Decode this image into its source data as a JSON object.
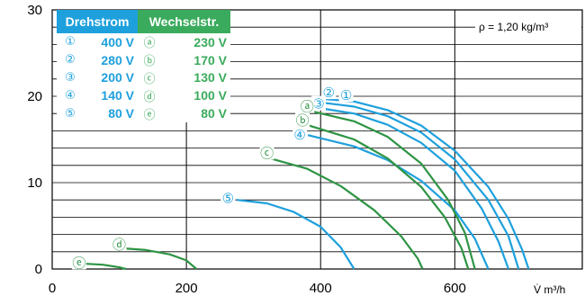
{
  "chart_data": {
    "type": "line",
    "x_ticks": [
      "0",
      "200",
      "400",
      "600"
    ],
    "y_ticks": [
      "0",
      "10",
      "20",
      "30"
    ],
    "x_unit_label": "V̇ m³/h",
    "annotation": "ρ = 1,20 kg/m³",
    "xlim": [
      0,
      790
    ],
    "ylim": [
      0,
      30
    ],
    "grid": true,
    "legend": {
      "header_left": "Drehstrom",
      "header_right": "Wechselstr.",
      "header_left_color": "#1ea0dc",
      "header_right_color": "#3aab5c",
      "rows": [
        {
          "sym_left": "①",
          "val_left": "400 V",
          "sym_right": "ⓐ",
          "val_right": "230 V"
        },
        {
          "sym_left": "②",
          "val_left": "280 V",
          "sym_right": "ⓑ",
          "val_right": "170 V"
        },
        {
          "sym_left": "③",
          "val_left": "200 V",
          "sym_right": "ⓒ",
          "val_right": "130 V"
        },
        {
          "sym_left": "④",
          "val_left": "140 V",
          "sym_right": "ⓓ",
          "val_right": "100 V"
        },
        {
          "sym_left": "⑤",
          "val_left": "80 V",
          "sym_right": "ⓔ",
          "val_right": "80 V"
        }
      ]
    },
    "series": [
      {
        "marker": "①",
        "color": "#1ea0dc",
        "label_at": [
          438,
          20.1
        ],
        "points": [
          [
            403,
            19.7
          ],
          [
            450,
            19.4
          ],
          [
            500,
            18.4
          ],
          [
            550,
            16.6
          ],
          [
            600,
            13.7
          ],
          [
            650,
            9.5
          ],
          [
            680,
            5.8
          ],
          [
            700,
            2.3
          ],
          [
            710,
            0
          ]
        ]
      },
      {
        "marker": "②",
        "color": "#1ea0dc",
        "label_at": [
          412,
          20.4
        ],
        "points": [
          [
            398,
            19.3
          ],
          [
            450,
            18.8
          ],
          [
            500,
            17.7
          ],
          [
            550,
            15.8
          ],
          [
            600,
            12.7
          ],
          [
            650,
            8.0
          ],
          [
            680,
            3.8
          ],
          [
            695,
            0
          ]
        ]
      },
      {
        "marker": "③",
        "color": "#1ea0dc",
        "label_at": [
          397,
          19.1
        ],
        "points": [
          [
            393,
            18.7
          ],
          [
            450,
            18.0
          ],
          [
            500,
            16.7
          ],
          [
            550,
            14.6
          ],
          [
            600,
            11.4
          ],
          [
            640,
            7.0
          ],
          [
            665,
            3.2
          ],
          [
            680,
            0
          ]
        ]
      },
      {
        "marker": "④",
        "color": "#1ea0dc",
        "label_at": [
          369,
          15.5
        ],
        "points": [
          [
            381,
            15.5
          ],
          [
            450,
            14.2
          ],
          [
            500,
            12.6
          ],
          [
            550,
            10.2
          ],
          [
            600,
            6.8
          ],
          [
            630,
            3.5
          ],
          [
            650,
            0
          ]
        ]
      },
      {
        "marker": "⑤",
        "color": "#1ea0dc",
        "label_at": [
          262,
          8.2
        ],
        "points": [
          [
            275,
            8.0
          ],
          [
            320,
            7.6
          ],
          [
            360,
            6.6
          ],
          [
            400,
            4.9
          ],
          [
            430,
            2.5
          ],
          [
            450,
            0
          ]
        ]
      },
      {
        "marker": "ⓐ",
        "color": "#2e9444",
        "label_at": [
          380,
          18.8
        ],
        "points": [
          [
            385,
            18.3
          ],
          [
            450,
            17.1
          ],
          [
            500,
            15.3
          ],
          [
            550,
            12.2
          ],
          [
            590,
            8.0
          ],
          [
            615,
            4.2
          ],
          [
            630,
            0
          ]
        ]
      },
      {
        "marker": "ⓑ",
        "color": "#2e9444",
        "label_at": [
          373,
          17.2
        ],
        "points": [
          [
            379,
            16.7
          ],
          [
            450,
            15.0
          ],
          [
            500,
            12.8
          ],
          [
            550,
            9.5
          ],
          [
            585,
            6.0
          ],
          [
            610,
            2.4
          ],
          [
            620,
            0
          ]
        ]
      },
      {
        "marker": "ⓒ",
        "color": "#2e9444",
        "label_at": [
          320,
          13.4
        ],
        "points": [
          [
            325,
            12.8
          ],
          [
            380,
            11.6
          ],
          [
            430,
            9.6
          ],
          [
            480,
            6.8
          ],
          [
            520,
            3.8
          ],
          [
            545,
            1.2
          ],
          [
            552,
            0
          ]
        ]
      },
      {
        "marker": "ⓓ",
        "color": "#2e9444",
        "label_at": [
          100,
          2.8
        ],
        "points": [
          [
            105,
            2.4
          ],
          [
            140,
            2.2
          ],
          [
            175,
            1.7
          ],
          [
            200,
            1.0
          ],
          [
            215,
            0
          ]
        ]
      },
      {
        "marker": "ⓔ",
        "color": "#2e9444",
        "label_at": [
          40,
          0.7
        ],
        "points": [
          [
            50,
            0.6
          ],
          [
            75,
            0.5
          ],
          [
            100,
            0.2
          ],
          [
            110,
            0
          ]
        ]
      }
    ]
  }
}
